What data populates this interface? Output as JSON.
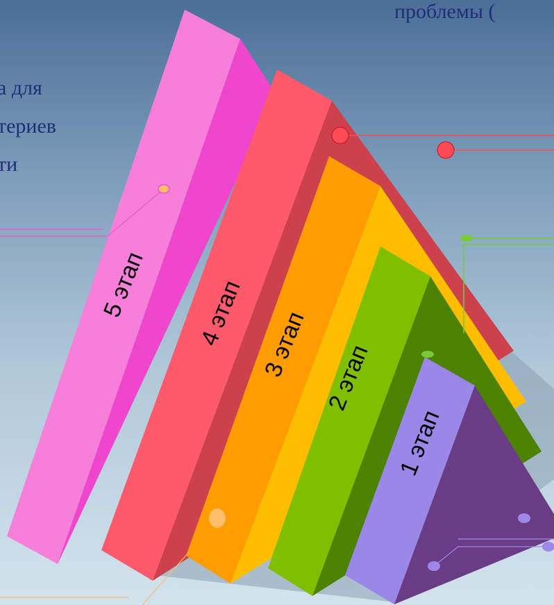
{
  "text_fragments": {
    "top_right": "проблемы (",
    "left_line1": "а для",
    "left_line2": "териев",
    "left_line3": "ти"
  },
  "stages": [
    {
      "label": "5 этап",
      "front": "#f57fd9",
      "side": "#ee46cc"
    },
    {
      "label": "4 этап",
      "front": "#fe5a6c",
      "side": "#cc414c"
    },
    {
      "label": "3 этап",
      "front": "#ff9c00",
      "side": "#ffbd00"
    },
    {
      "label": "2 этап",
      "front": "#7fbf00",
      "side": "#4d8200"
    },
    {
      "label": "1 этап",
      "front": "#9a87e8",
      "side": "#6a3c86"
    }
  ],
  "colors": {
    "connector_red": "#ff4a55",
    "connector_green": "#79c93a",
    "connector_pink": "#ef56ce",
    "connector_orange": "#ffbe69",
    "connector_purple": "#9d88ea",
    "shadow": "#8aa1b2"
  }
}
